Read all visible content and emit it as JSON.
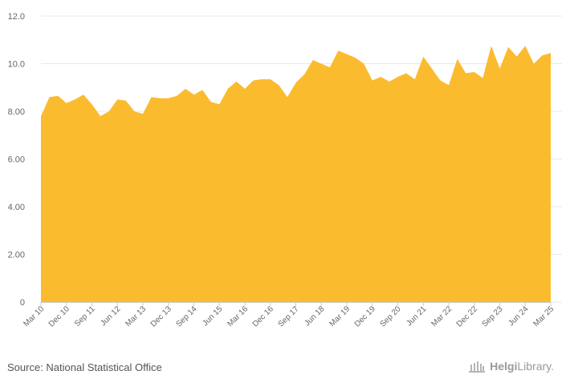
{
  "chart_data": {
    "type": "area",
    "color": "#fbbb2f",
    "y_ticks": [
      "0",
      "2.00",
      "4.00",
      "6.00",
      "8.00",
      "10.0",
      "12.0"
    ],
    "ylim": [
      0,
      12
    ],
    "grid": true,
    "x_tick_labels": [
      "Mar 10",
      "Dec 10",
      "Sep 11",
      "Jun 12",
      "Mar 13",
      "Dec 13",
      "Sep 14",
      "Jun 15",
      "Mar 16",
      "Dec 16",
      "Sep 17",
      "Jun 18",
      "Mar 19",
      "Dec 19",
      "Sep 20",
      "Jun 21",
      "Mar 22",
      "Dec 22",
      "Sep 23",
      "Jun 24",
      "Mar 25"
    ],
    "values": [
      7.8,
      8.6,
      8.65,
      8.35,
      8.5,
      8.7,
      8.3,
      7.8,
      8.0,
      8.5,
      8.45,
      8.0,
      7.9,
      8.6,
      8.55,
      8.55,
      8.65,
      8.95,
      8.7,
      8.9,
      8.4,
      8.3,
      8.95,
      9.25,
      8.95,
      9.3,
      9.35,
      9.35,
      9.1,
      8.6,
      9.2,
      9.55,
      10.15,
      10.0,
      9.85,
      10.55,
      10.4,
      10.25,
      10.0,
      9.3,
      9.45,
      9.25,
      9.45,
      9.6,
      9.35,
      10.3,
      9.8,
      9.3,
      9.1,
      10.2,
      9.6,
      9.65,
      9.4,
      10.75,
      9.8,
      10.7,
      10.3,
      10.75,
      10.0,
      10.35,
      10.45
    ]
  },
  "footer": {
    "source": "Source: National Statistical Office",
    "logo_bold": "Helgi",
    "logo_light": "Library."
  }
}
